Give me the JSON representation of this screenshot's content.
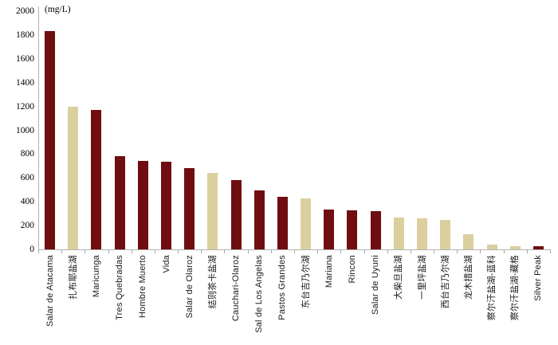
{
  "chart_data": {
    "type": "bar",
    "title": "(mg/L)",
    "xlabel": "",
    "ylabel": "(mg/L)",
    "ylim": [
      0,
      2000
    ],
    "ytick_step": 200,
    "ytick_labels": [
      "0",
      "200",
      "400",
      "600",
      "800",
      "1000",
      "1200",
      "1400",
      "1600",
      "1800",
      "2000"
    ],
    "grid": false,
    "legend_position": "none",
    "palette": {
      "maroon": "#6F0D10",
      "tan": "#DCCF9E",
      "axis_gray": "#b3b3b3"
    },
    "categories": [
      "Salar de Atacama",
      "扎布耶盐湖",
      "Maricunga",
      "Tres Quebradas",
      "Hombre Muerto",
      "Vida",
      "Salar de Olaroz",
      "结则茶卡盐湖",
      "Cauchari-Olaroz",
      "Sal de Los Angelas",
      "Pastos Grandes",
      "东台吉乃尔湖",
      "Mariana",
      "Rincon",
      "Salar de Uyuni",
      "大柴旦盐湖",
      "一里坪盐湖",
      "西台吉乃尔湖",
      "龙木措盐湖",
      "察尔汗盐湖-蓝科",
      "察尔汗盐湖-藏格",
      "Silver Peak"
    ],
    "values": [
      1830,
      1200,
      1170,
      785,
      740,
      735,
      680,
      640,
      580,
      495,
      440,
      425,
      335,
      325,
      320,
      270,
      260,
      245,
      130,
      40,
      30,
      25
    ],
    "colors": [
      "#6F0D10",
      "#DCCF9E",
      "#6F0D10",
      "#6F0D10",
      "#6F0D10",
      "#6F0D10",
      "#6F0D10",
      "#DCCF9E",
      "#6F0D10",
      "#6F0D10",
      "#6F0D10",
      "#DCCF9E",
      "#6F0D10",
      "#6F0D10",
      "#6F0D10",
      "#DCCF9E",
      "#DCCF9E",
      "#DCCF9E",
      "#DCCF9E",
      "#DCCF9E",
      "#DCCF9E",
      "#6F0D10"
    ]
  }
}
